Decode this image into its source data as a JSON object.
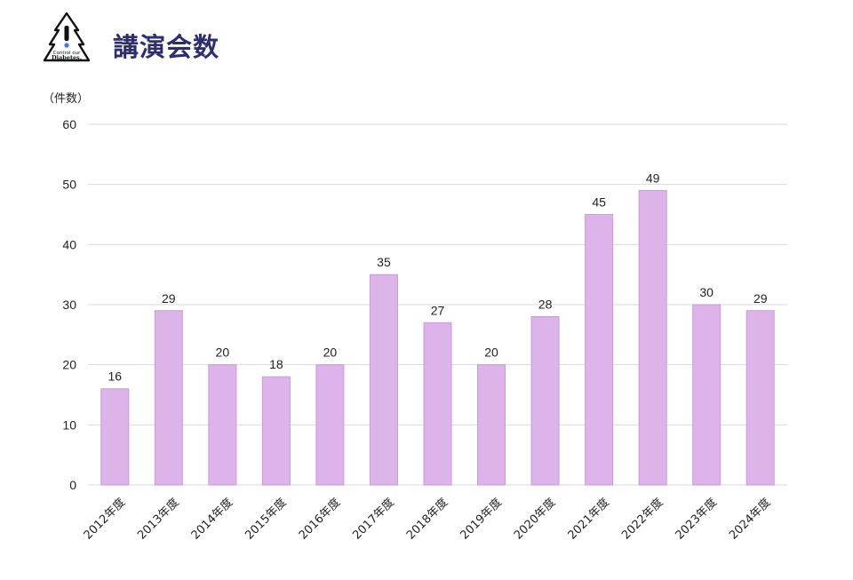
{
  "header": {
    "title": "講演会数",
    "logo_text_line1": "Control our",
    "logo_text_line2": "Diabetes."
  },
  "chart_data": {
    "type": "bar",
    "title": "講演会数",
    "ylabel": "（件数）",
    "xlabel": "",
    "categories": [
      "2012年度",
      "2013年度",
      "2014年度",
      "2015年度",
      "2016年度",
      "2017年度",
      "2018年度",
      "2019年度",
      "2020年度",
      "2021年度",
      "2022年度",
      "2023年度",
      "2024年度"
    ],
    "values": [
      16,
      29,
      20,
      18,
      20,
      35,
      27,
      20,
      28,
      45,
      49,
      30,
      29
    ],
    "ylim": [
      0,
      60
    ],
    "yticks": [
      0,
      10,
      20,
      30,
      40,
      50,
      60
    ],
    "grid": true,
    "data_labels": true,
    "colors": {
      "bar_fill": "#dcb4ea",
      "bar_stroke": "#c79ad8",
      "grid": "#d9d9d9",
      "text": "#222222",
      "title": "#2e2e6e"
    }
  }
}
